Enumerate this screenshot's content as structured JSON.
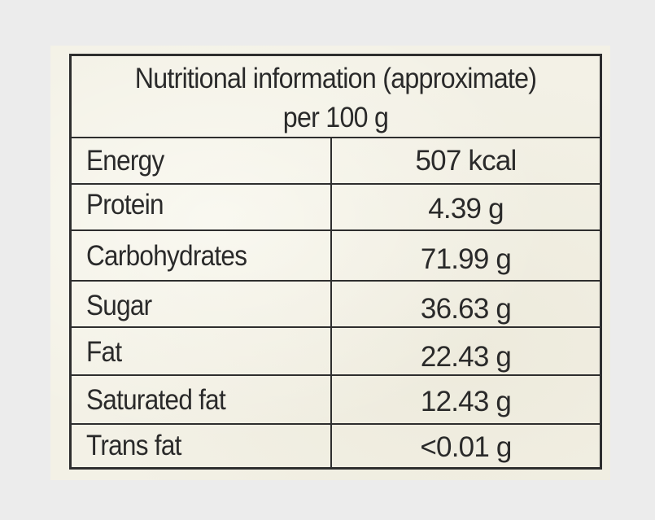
{
  "title": {
    "line1": "Nutritional information (approximate)",
    "line2": "per 100 g"
  },
  "rows": [
    {
      "name": "Energy",
      "value": "507 kcal"
    },
    {
      "name": "Protein",
      "value": "4.39 g"
    },
    {
      "name": "Carbohydrates",
      "value": "71.99 g"
    },
    {
      "name": "Sugar",
      "value": "36.63 g"
    },
    {
      "name": "Fat",
      "value": "22.43 g"
    },
    {
      "name": "Saturated fat",
      "value": "12.43 g"
    },
    {
      "name": "Trans fat",
      "value": "<0.01 g"
    }
  ],
  "colors": {
    "background": "#ececec",
    "paper": "#f3f1e6",
    "ink": "#2a2a2a"
  }
}
